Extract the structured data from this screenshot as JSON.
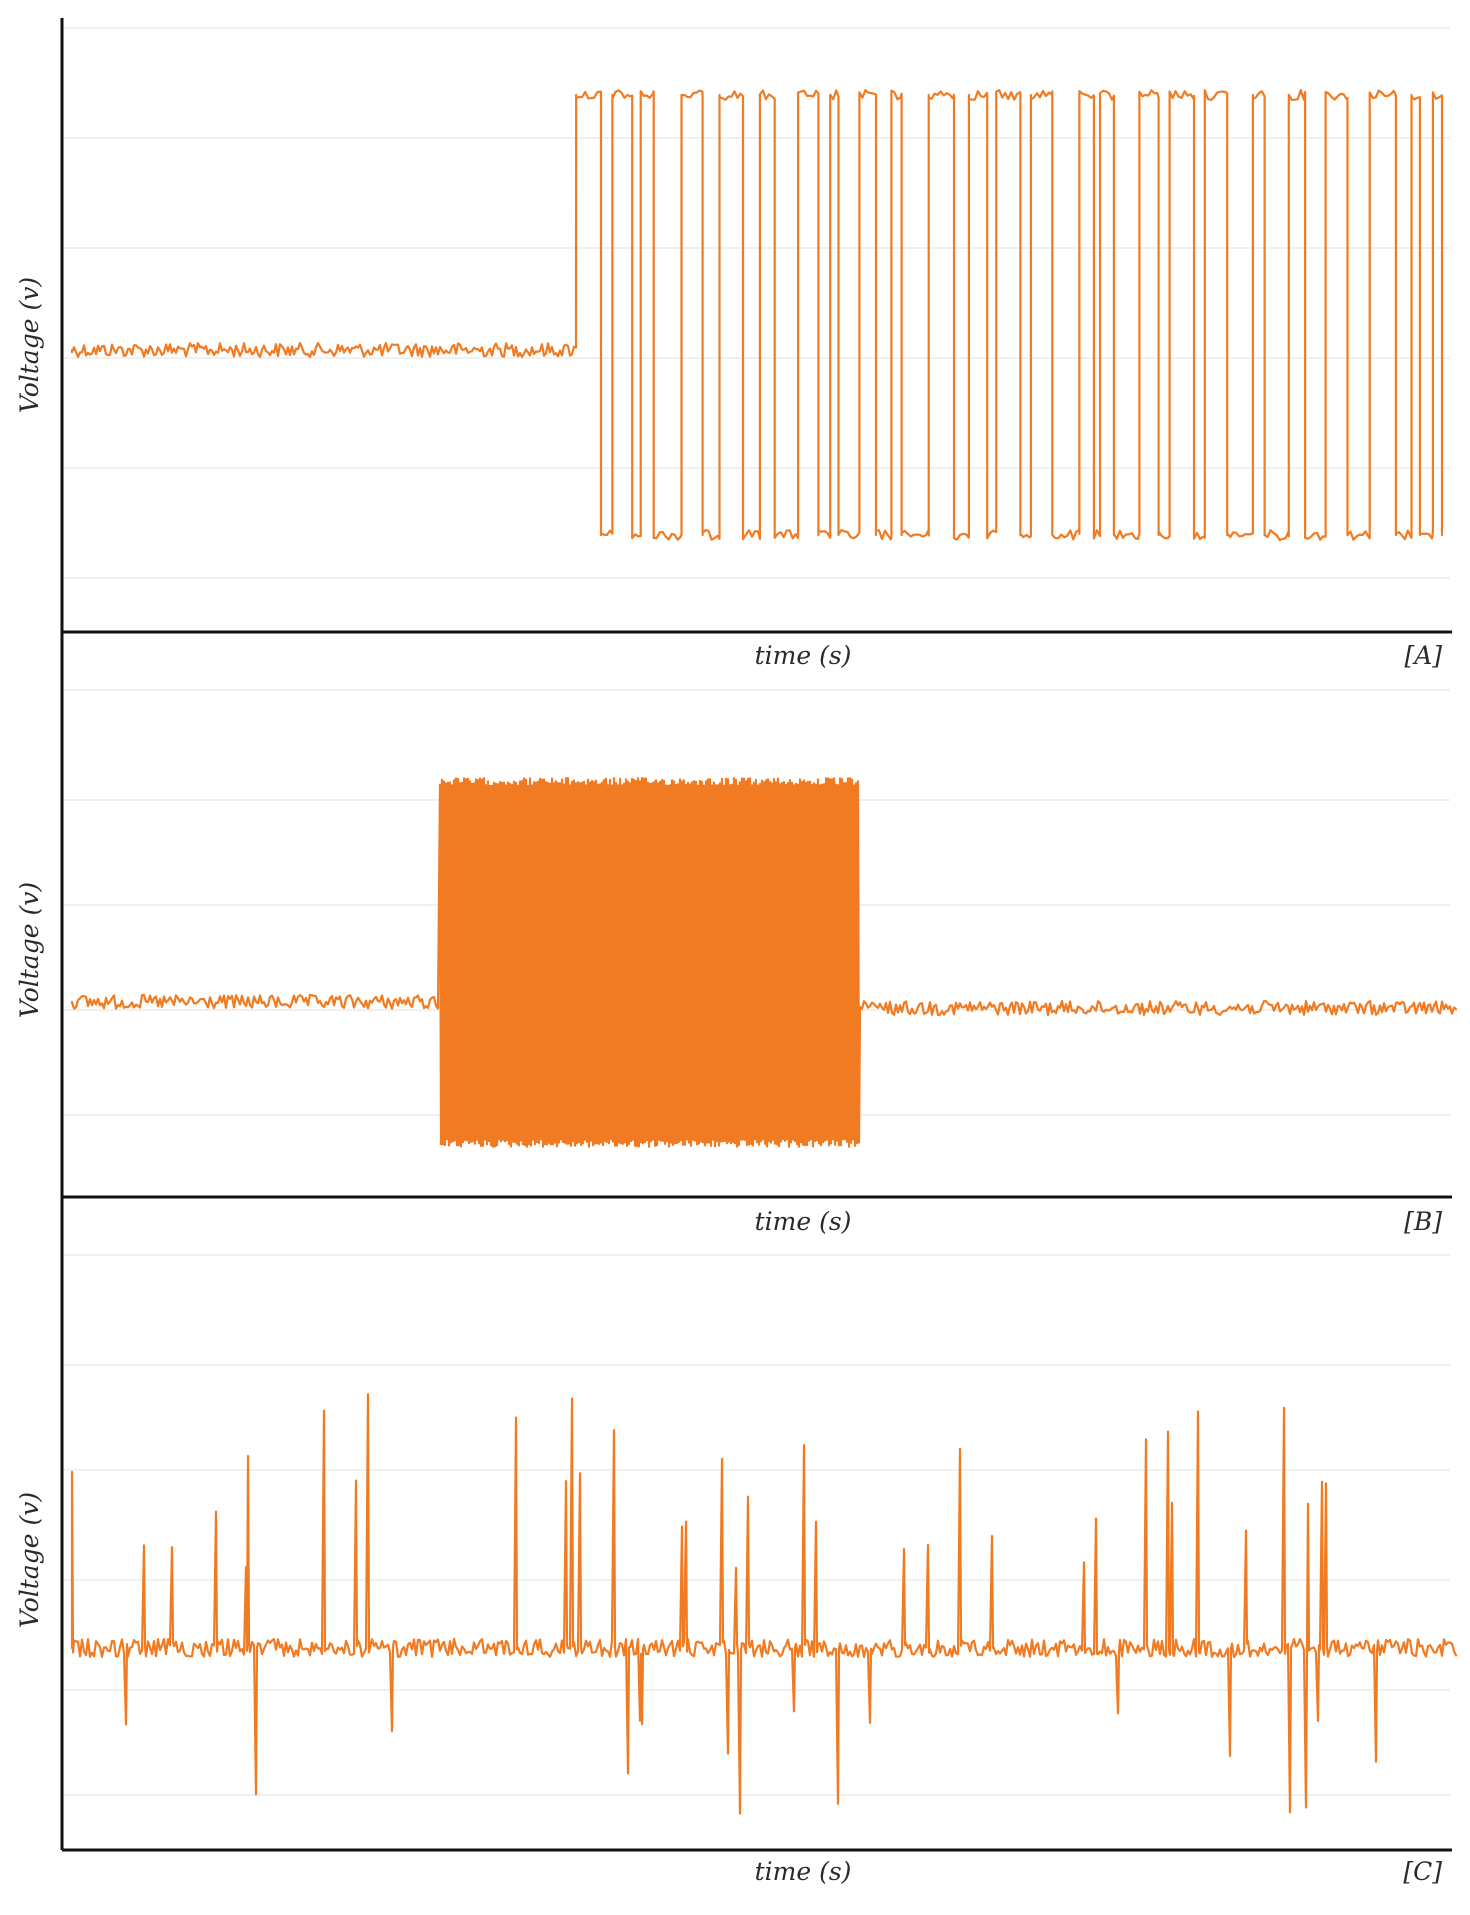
{
  "figure": {
    "stroke_color": "#f07b22",
    "axis_color": "#111111",
    "grid_color": "#ececec"
  },
  "chart_data": [
    {
      "type": "line",
      "panel_label": "[A]",
      "xlabel": "time (s)",
      "ylabel": "Voltage (v)",
      "grid": "horizontal",
      "series": [
        {
          "pattern": "baseline noise, then continuous bursting between high and low rails",
          "onset_fraction": 0.32
        }
      ]
    },
    {
      "type": "line",
      "panel_label": "[B]",
      "xlabel": "time (s)",
      "ylabel": "Voltage (v)",
      "grid": "horizontal",
      "series": [
        {
          "pattern": "baseline noise, dense burst block, then baseline noise",
          "burst_start_fraction": 0.27,
          "burst_end_fraction": 0.57
        }
      ]
    },
    {
      "type": "line",
      "panel_label": "[C]",
      "xlabel": "time (s)",
      "ylabel": "Voltage (v)",
      "grid": "horizontal",
      "series": [
        {
          "pattern": "baseline noise with irregular upward and downward spikes throughout"
        }
      ]
    }
  ]
}
